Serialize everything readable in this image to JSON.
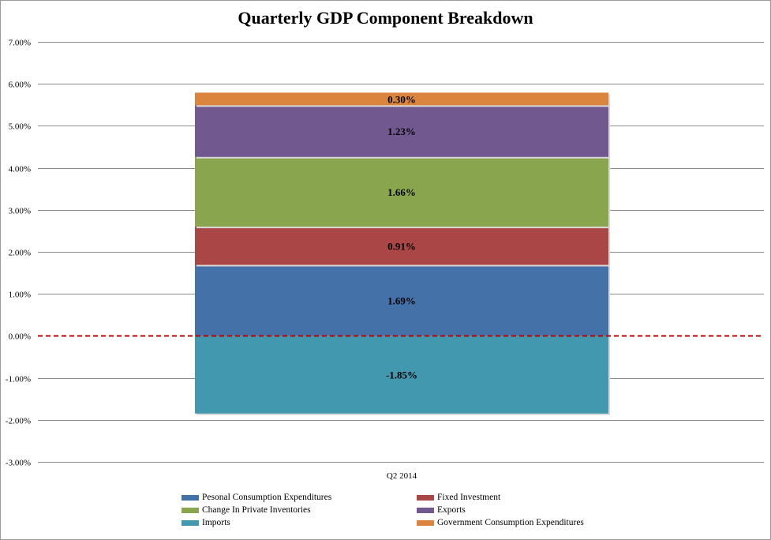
{
  "chart_data": {
    "type": "bar",
    "stacked": true,
    "title": "Quarterly GDP Component Breakdown",
    "xlabel": "",
    "ylabel": "",
    "categories": [
      "Q2 2014"
    ],
    "ylim": [
      -3,
      7
    ],
    "ytick_step": 1,
    "ytick_format": "percent-2dp",
    "grid": true,
    "reference_line": {
      "y": 0,
      "color": "#c00000",
      "style": "dashed"
    },
    "legend_position": "bottom",
    "series": [
      {
        "name": "Pesonal Consumption Expenditures",
        "values": [
          1.69
        ],
        "color": "#4472a8",
        "label": "1.69%"
      },
      {
        "name": "Fixed Investment",
        "values": [
          0.91
        ],
        "color": "#aa4746",
        "label": "0.91%"
      },
      {
        "name": "Change In Private Inventories",
        "values": [
          1.66
        ],
        "color": "#89a54e",
        "label": "1.66%"
      },
      {
        "name": "Exports",
        "values": [
          1.23
        ],
        "color": "#71588f",
        "label": "1.23%"
      },
      {
        "name": "Imports",
        "values": [
          -1.85
        ],
        "color": "#4198af",
        "label": "-1.85%"
      },
      {
        "name": "Government Consumption Expenditures",
        "values": [
          0.3
        ],
        "color": "#db843d",
        "label": "0.30%"
      }
    ],
    "legend_order": [
      0,
      1,
      2,
      3,
      4,
      5
    ]
  }
}
